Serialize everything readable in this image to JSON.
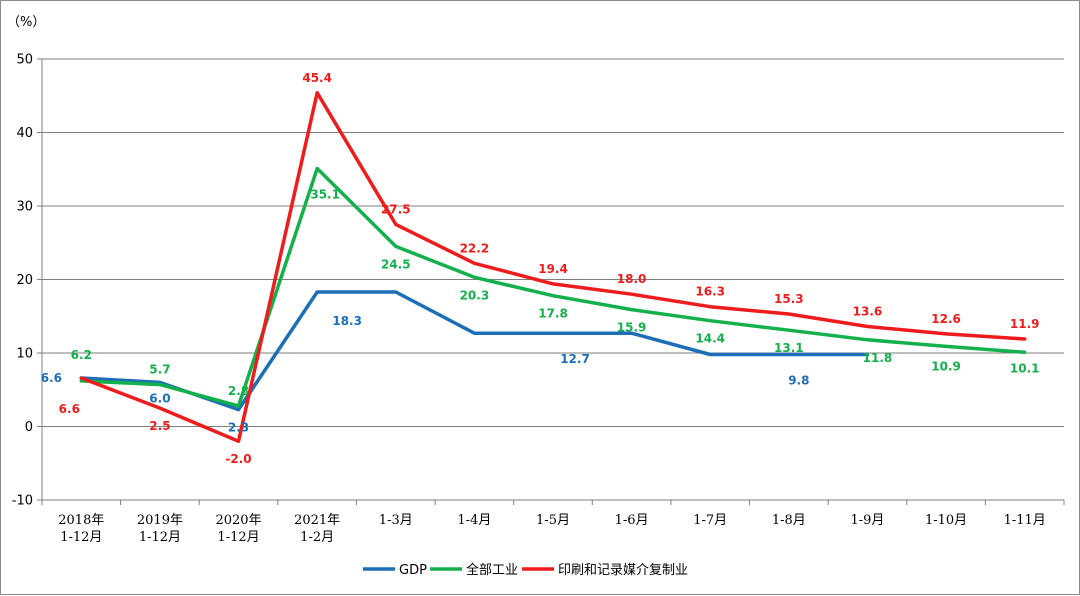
{
  "chart_data": {
    "type": "line",
    "unit_label": "（%）",
    "categories": [
      [
        "2018年",
        "1-12月"
      ],
      [
        "2019年",
        "1-12月"
      ],
      [
        "2020年",
        "1-12月"
      ],
      [
        "2021年",
        "1-2月"
      ],
      [
        "1-3月"
      ],
      [
        "1-4月"
      ],
      [
        "1-5月"
      ],
      [
        "1-6月"
      ],
      [
        "1-7月"
      ],
      [
        "1-8月"
      ],
      [
        "1-9月"
      ],
      [
        "1-10月"
      ],
      [
        "1-11月"
      ]
    ],
    "ylim": [
      -10,
      50
    ],
    "yticks": [
      -10,
      0,
      10,
      20,
      30,
      40,
      50
    ],
    "grid": true,
    "legend_position": "bottom",
    "series": [
      {
        "name": "GDP",
        "color": "#1c6fb7",
        "values": [
          6.6,
          6.0,
          2.3,
          18.3,
          18.3,
          12.7,
          12.7,
          12.7,
          9.8,
          9.8,
          9.8,
          null,
          null
        ],
        "labels": [
          "6.6",
          "6.0",
          "2.3",
          "18.3",
          null,
          null,
          "12.7",
          null,
          null,
          "9.8",
          null,
          null,
          null
        ]
      },
      {
        "name": "全部工业",
        "color": "#13b04b",
        "values": [
          6.2,
          5.7,
          2.8,
          35.1,
          24.5,
          20.3,
          17.8,
          15.9,
          14.4,
          13.1,
          11.8,
          10.9,
          10.1
        ],
        "labels": [
          "6.2",
          "5.7",
          "2.8",
          "35.1",
          "24.5",
          "20.3",
          "17.8",
          "15.9",
          "14.4",
          "13.1",
          "11.8",
          "10.9",
          "10.1"
        ]
      },
      {
        "name": "印刷和记录媒介复制业",
        "color": "#ee1c1c",
        "values": [
          6.6,
          2.5,
          -2.0,
          45.4,
          27.5,
          22.2,
          19.4,
          18.0,
          16.3,
          15.3,
          13.6,
          12.6,
          11.9
        ],
        "labels": [
          "6.6",
          "2.5",
          "-2.0",
          "45.4",
          "27.5",
          "22.2",
          "19.4",
          "18.0",
          "16.3",
          "15.3",
          "13.6",
          "12.6",
          "11.9"
        ]
      }
    ]
  }
}
